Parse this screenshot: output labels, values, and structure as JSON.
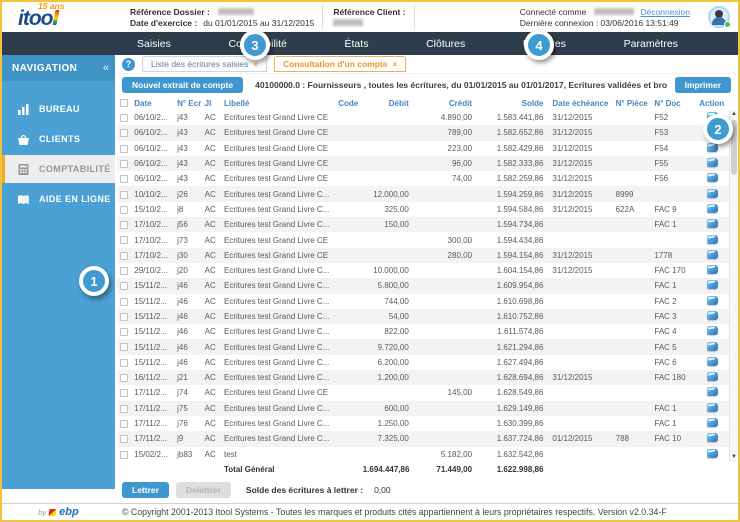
{
  "brand": {
    "name": "itoo",
    "mark": "l",
    "badge": "15 ans",
    "by_label": "by",
    "by_brand": "ebp"
  },
  "header": {
    "ref_dossier_label": "Référence Dossier :",
    "exercice_label": "Date d'exercice :",
    "exercice_value": "du 01/01/2015 au 31/12/2015",
    "ref_client_label": "Référence Client :",
    "connected_label": "Connecté comme",
    "logout_label": "Déconnexion",
    "last_connection": "Dernière connexion : 03/06/2016 13:51:49"
  },
  "nav": {
    "items": [
      "Saisies",
      "Comptabilité",
      "États",
      "Clôtures",
      "Utilitaires",
      "Paramètres"
    ]
  },
  "sidebar": {
    "title": "NAVIGATION",
    "collapse_icon": "«",
    "items": [
      {
        "label": "BUREAU"
      },
      {
        "label": "CLIENTS"
      },
      {
        "label": "COMPTABILITÉ"
      },
      {
        "label": "AIDE EN LIGNE"
      }
    ]
  },
  "tabs": [
    {
      "label": "Liste des écritures saisies",
      "close": "×"
    },
    {
      "label": "Consultation d'un compte",
      "close": "×"
    }
  ],
  "help_icon": "?",
  "toolbar": {
    "new_extract_label": "Nouvel extrait de compte",
    "description": "40100000.0 : Fournisseurs , toutes les écritures, du 01/01/2015 au 01/01/2017, Ecritures validées et brouillards",
    "print_label": "Imprimer"
  },
  "table": {
    "columns": [
      "Date",
      "N° Ecr",
      "Jl",
      "Libellé",
      "Code",
      "Débit",
      "Crédit",
      "Solde",
      "Date échéance",
      "N° Pièce",
      "N° Doc",
      "Action"
    ],
    "rows": [
      {
        "date": "06/10/2...",
        "ecr": "j43",
        "jl": "AC",
        "libelle": "Ecritures test Grand Livre CE",
        "code": "",
        "debit": "",
        "credit": "4.890,00",
        "solde": "1.583.441,86",
        "echeance": "31/12/2015",
        "piece": "",
        "doc": "F52"
      },
      {
        "date": "06/10/2...",
        "ecr": "j43",
        "jl": "AC",
        "libelle": "Ecritures test Grand Livre CE",
        "code": "",
        "debit": "",
        "credit": "789,00",
        "solde": "1.582.652,86",
        "echeance": "31/12/2015",
        "piece": "",
        "doc": "F53"
      },
      {
        "date": "06/10/2...",
        "ecr": "j43",
        "jl": "AC",
        "libelle": "Ecritures test Grand Livre CE",
        "code": "",
        "debit": "",
        "credit": "223,00",
        "solde": "1.582.429,86",
        "echeance": "31/12/2015",
        "piece": "",
        "doc": "F54"
      },
      {
        "date": "06/10/2...",
        "ecr": "j43",
        "jl": "AC",
        "libelle": "Ecritures test Grand Livre CE",
        "code": "",
        "debit": "",
        "credit": "96,00",
        "solde": "1.582.333,86",
        "echeance": "31/12/2015",
        "piece": "",
        "doc": "F55"
      },
      {
        "date": "06/10/2...",
        "ecr": "j43",
        "jl": "AC",
        "libelle": "Ecritures test Grand Livre CE",
        "code": "",
        "debit": "",
        "credit": "74,00",
        "solde": "1.582.259,86",
        "echeance": "31/12/2015",
        "piece": "",
        "doc": "F56"
      },
      {
        "date": "10/10/2...",
        "ecr": "j26",
        "jl": "AC",
        "libelle": "Ecritures test Grand Livre C...",
        "code": "",
        "debit": "12.000,00",
        "credit": "",
        "solde": "1.594.259,86",
        "echeance": "31/12/2015",
        "piece": "8999",
        "doc": ""
      },
      {
        "date": "15/10/2...",
        "ecr": "j8",
        "jl": "AC",
        "libelle": "Ecritures test Grand Livre C...",
        "code": "",
        "debit": "325,00",
        "credit": "",
        "solde": "1.594.584,86",
        "echeance": "31/12/2015",
        "piece": "622A",
        "doc": "FAC 9"
      },
      {
        "date": "17/10/2...",
        "ecr": "j56",
        "jl": "AC",
        "libelle": "Ecritures test Grand Livre C...",
        "code": "",
        "debit": "150,00",
        "credit": "",
        "solde": "1.594.734,86",
        "echeance": "",
        "piece": "",
        "doc": "FAC 1"
      },
      {
        "date": "17/10/2...",
        "ecr": "j73",
        "jl": "AC",
        "libelle": "Ecritures test Grand Livre CE",
        "code": "",
        "debit": "",
        "credit": "300,00",
        "solde": "1.594.434,86",
        "echeance": "",
        "piece": "",
        "doc": ""
      },
      {
        "date": "17/10/2...",
        "ecr": "j30",
        "jl": "AC",
        "libelle": "Ecritures test Grand Livre CE",
        "code": "",
        "debit": "",
        "credit": "280,00",
        "solde": "1.594.154,86",
        "echeance": "31/12/2015",
        "piece": "",
        "doc": "1778"
      },
      {
        "date": "29/10/2...",
        "ecr": "j20",
        "jl": "AC",
        "libelle": "Ecritures test Grand Livre C...",
        "code": "",
        "debit": "10.000,00",
        "credit": "",
        "solde": "1.604.154,86",
        "echeance": "31/12/2015",
        "piece": "",
        "doc": "FAC 170"
      },
      {
        "date": "15/11/2...",
        "ecr": "j46",
        "jl": "AC",
        "libelle": "Ecritures test Grand Livre C...",
        "code": "",
        "debit": "5.800,00",
        "credit": "",
        "solde": "1.609.954,86",
        "echeance": "",
        "piece": "",
        "doc": "FAC 1"
      },
      {
        "date": "15/11/2...",
        "ecr": "j46",
        "jl": "AC",
        "libelle": "Ecritures test Grand Livre C...",
        "code": "",
        "debit": "744,00",
        "credit": "",
        "solde": "1.610.698,86",
        "echeance": "",
        "piece": "",
        "doc": "FAC 2"
      },
      {
        "date": "15/11/2...",
        "ecr": "j46",
        "jl": "AC",
        "libelle": "Ecritures test Grand Livre C...",
        "code": "",
        "debit": "54,00",
        "credit": "",
        "solde": "1.610.752,86",
        "echeance": "",
        "piece": "",
        "doc": "FAC 3"
      },
      {
        "date": "15/11/2...",
        "ecr": "j46",
        "jl": "AC",
        "libelle": "Ecritures test Grand Livre C...",
        "code": "",
        "debit": "822,00",
        "credit": "",
        "solde": "1.611.574,86",
        "echeance": "",
        "piece": "",
        "doc": "FAC 4"
      },
      {
        "date": "15/11/2...",
        "ecr": "j46",
        "jl": "AC",
        "libelle": "Ecritures test Grand Livre C...",
        "code": "",
        "debit": "9.720,00",
        "credit": "",
        "solde": "1.621.294,86",
        "echeance": "",
        "piece": "",
        "doc": "FAC 5"
      },
      {
        "date": "15/11/2...",
        "ecr": "j46",
        "jl": "AC",
        "libelle": "Ecritures test Grand Livre C...",
        "code": "",
        "debit": "6.200,00",
        "credit": "",
        "solde": "1.627.494,86",
        "echeance": "",
        "piece": "",
        "doc": "FAC 6"
      },
      {
        "date": "16/11/2...",
        "ecr": "j21",
        "jl": "AC",
        "libelle": "Ecritures test Grand Livre C...",
        "code": "",
        "debit": "1.200,00",
        "credit": "",
        "solde": "1.628.694,86",
        "echeance": "31/12/2015",
        "piece": "",
        "doc": "FAC 180"
      },
      {
        "date": "17/11/2...",
        "ecr": "j74",
        "jl": "AC",
        "libelle": "Ecritures test Grand Livre CE",
        "code": "",
        "debit": "",
        "credit": "145,00",
        "solde": "1.628.549,86",
        "echeance": "",
        "piece": "",
        "doc": ""
      },
      {
        "date": "17/11/2...",
        "ecr": "j75",
        "jl": "AC",
        "libelle": "Ecritures test Grand Livre C...",
        "code": "",
        "debit": "600,00",
        "credit": "",
        "solde": "1.629.149,86",
        "echeance": "",
        "piece": "",
        "doc": "FAC 1"
      },
      {
        "date": "17/11/2...",
        "ecr": "j76",
        "jl": "AC",
        "libelle": "Ecritures test Grand Livre C...",
        "code": "",
        "debit": "1.250,00",
        "credit": "",
        "solde": "1.630.399,86",
        "echeance": "",
        "piece": "",
        "doc": "FAC 1"
      },
      {
        "date": "17/11/2...",
        "ecr": "j9",
        "jl": "AC",
        "libelle": "Ecritures test Grand Livre C...",
        "code": "",
        "debit": "7.325,00",
        "credit": "",
        "solde": "1.637.724,86",
        "echeance": "01/12/2015",
        "piece": "788",
        "doc": "FAC 10"
      },
      {
        "date": "15/02/2...",
        "ecr": "jb83",
        "jl": "AC",
        "libelle": "test",
        "code": "",
        "debit": "",
        "credit": "5.182,00",
        "solde": "1.632.542,86",
        "echeance": "",
        "piece": "",
        "doc": ""
      }
    ],
    "total": {
      "label": "Total Général",
      "debit": "1.694.447,86",
      "credit": "71.449,00",
      "solde": "1.622.998,86"
    }
  },
  "footer_actions": {
    "lettrer_label": "Lettrer",
    "delettrer_label": "Delettrer",
    "solde_label": "Solde des écritures à lettrer :",
    "solde_value": "0,00"
  },
  "statusbar": {
    "copyright": "© Copyright 2001-2013 Itool Systems - Toutes les marques et produits cités appartiennent à leurs propriétaires respectifs. Version v2.0.34-F"
  },
  "callouts": [
    {
      "n": "1"
    },
    {
      "n": "2"
    },
    {
      "n": "3"
    },
    {
      "n": "4"
    }
  ],
  "scrollbar": {
    "up": "▲",
    "down": "▼"
  },
  "colors": {
    "accent_blue": "#4ba1d3",
    "accent_orange": "#f09225",
    "nav_dark": "#2e3c4b",
    "link_blue": "#4a90d9",
    "border_gold": "#f2c33c"
  }
}
